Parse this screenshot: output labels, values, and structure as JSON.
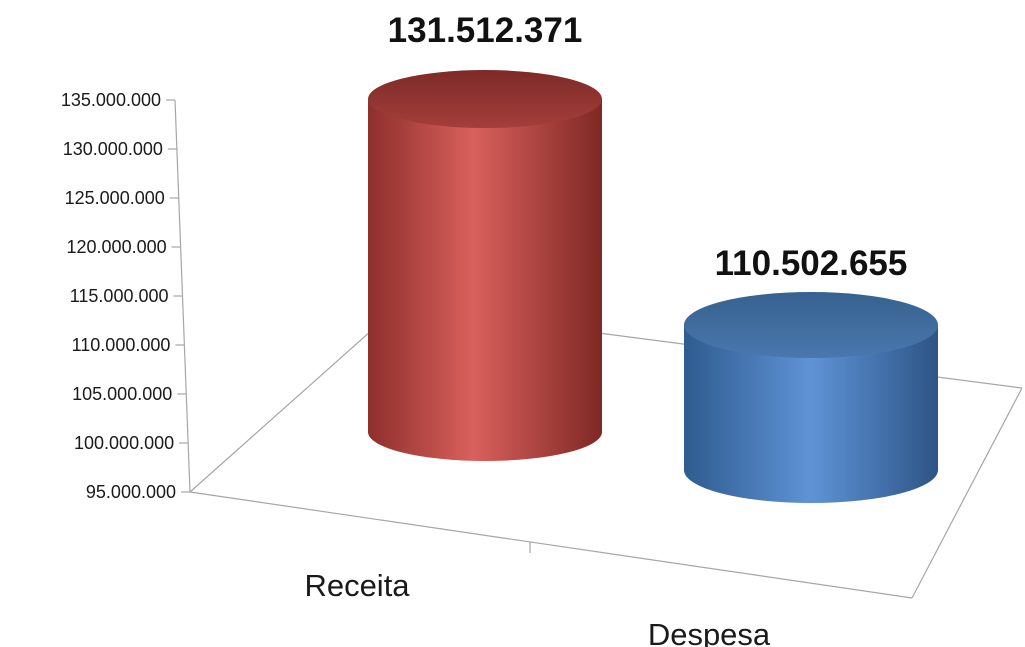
{
  "chart_data": {
    "type": "bar",
    "style": "3d-cylinder",
    "categories": [
      "Receita",
      "Despesa"
    ],
    "series": [
      {
        "values": [
          131512371,
          110502655
        ],
        "colors": [
          "#c0504d",
          "#4f81bd"
        ]
      }
    ],
    "data_labels": [
      "131.512.371",
      "110.502.655"
    ],
    "ylim": [
      95000000,
      135000000
    ],
    "y_ticks": [
      95000000,
      100000000,
      105000000,
      110000000,
      115000000,
      120000000,
      125000000,
      130000000,
      135000000
    ],
    "y_tick_labels": [
      "95.000.000",
      "100.000.000",
      "105.000.000",
      "110.000.000",
      "115.000.000",
      "120.000.000",
      "125.000.000",
      "130.000.000",
      "135.000.000"
    ],
    "grid": false,
    "legend": "none",
    "title": "",
    "xlabel": "",
    "ylabel": ""
  }
}
